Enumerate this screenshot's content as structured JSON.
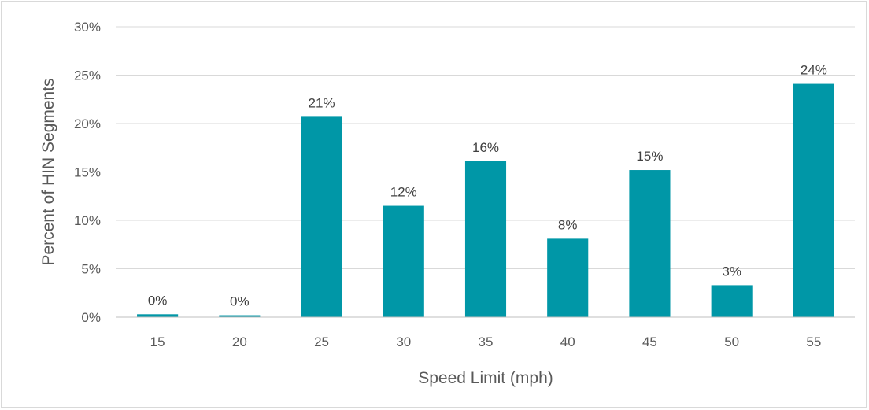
{
  "chart_data": {
    "type": "bar",
    "title": "",
    "xlabel": "Speed Limit (mph)",
    "ylabel": "Percent of HIN Segments",
    "categories": [
      "15",
      "20",
      "25",
      "30",
      "35",
      "40",
      "45",
      "50",
      "55"
    ],
    "values": [
      0.3,
      0.2,
      20.7,
      11.5,
      16.1,
      8.1,
      15.2,
      3.3,
      24.1
    ],
    "data_labels": [
      "0%",
      "0%",
      "21%",
      "12%",
      "16%",
      "8%",
      "15%",
      "3%",
      "24%"
    ],
    "ylim": [
      0,
      30
    ],
    "yticks": [
      0,
      5,
      10,
      15,
      20,
      25,
      30
    ],
    "ytick_labels": [
      "0%",
      "5%",
      "10%",
      "15%",
      "20%",
      "25%",
      "30%"
    ],
    "grid": true,
    "legend": "none",
    "bar_color": "#0097A7",
    "grid_color": "#D9D9D9",
    "axis_color": "#BFBFBF"
  }
}
